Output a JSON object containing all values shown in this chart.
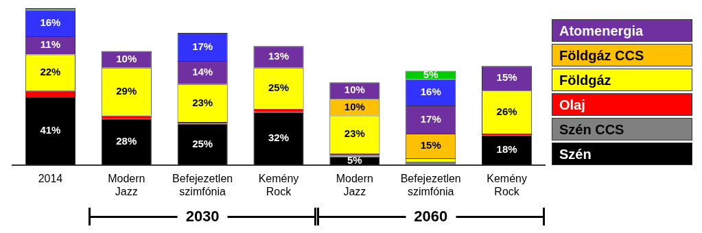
{
  "chart_data": {
    "type": "bar",
    "stacked": true,
    "categories": [
      "2014",
      "Modern Jazz",
      "Befejezetlen szimfónia",
      "Kemény Rock",
      "Modern Jazz",
      "Befejezetlen szimfónia",
      "Kemény Rock"
    ],
    "series": [
      {
        "name": "Szén",
        "color": "#000000",
        "values": [
          41,
          28,
          25,
          32,
          5,
          0,
          18
        ],
        "value_labels": [
          "41%",
          "28%",
          "25%",
          "32%",
          "5%",
          null,
          "18%"
        ]
      },
      {
        "name": "Szén CCS",
        "color": "#808080",
        "values": [
          0,
          0,
          0,
          0,
          1,
          2,
          0
        ],
        "value_labels": [
          null,
          null,
          null,
          null,
          null,
          null,
          null
        ]
      },
      {
        "name": "Olaj",
        "color": "#ff0000",
        "values": [
          4,
          2,
          1,
          2,
          1,
          0,
          1
        ],
        "value_labels": [
          null,
          null,
          null,
          null,
          null,
          null,
          null
        ]
      },
      {
        "name": "Földgáz",
        "color": "#ffff00",
        "values": [
          22,
          29,
          23,
          25,
          23,
          2,
          26
        ],
        "value_labels": [
          "22%",
          "29%",
          "23%",
          "25%",
          "23%",
          null,
          "26%"
        ]
      },
      {
        "name": "Földgáz CCS",
        "color": "#ffc000",
        "values": [
          0,
          0,
          0,
          0,
          10,
          15,
          0
        ],
        "value_labels": [
          null,
          null,
          null,
          null,
          "10%",
          "15%",
          null
        ]
      },
      {
        "name": "Atomenergia",
        "color": "#7030a0",
        "values": [
          11,
          10,
          14,
          13,
          10,
          17,
          15
        ],
        "value_labels": [
          "11%",
          "10%",
          "14%",
          "13%",
          "10%",
          "17%",
          "15%"
        ]
      },
      {
        "color": "#3333ff",
        "values": [
          16,
          null,
          17,
          null,
          null,
          16,
          null
        ],
        "value_labels": [
          "16%",
          null,
          "17%",
          null,
          null,
          "16%",
          null
        ]
      },
      {
        "color": "#00cc00",
        "values": [
          1,
          null,
          null,
          null,
          null,
          5,
          null
        ],
        "value_labels": [
          null,
          null,
          null,
          null,
          null,
          "5%",
          null
        ]
      }
    ],
    "legend": "right",
    "annotations": [
      "2030",
      "2060"
    ]
  }
}
